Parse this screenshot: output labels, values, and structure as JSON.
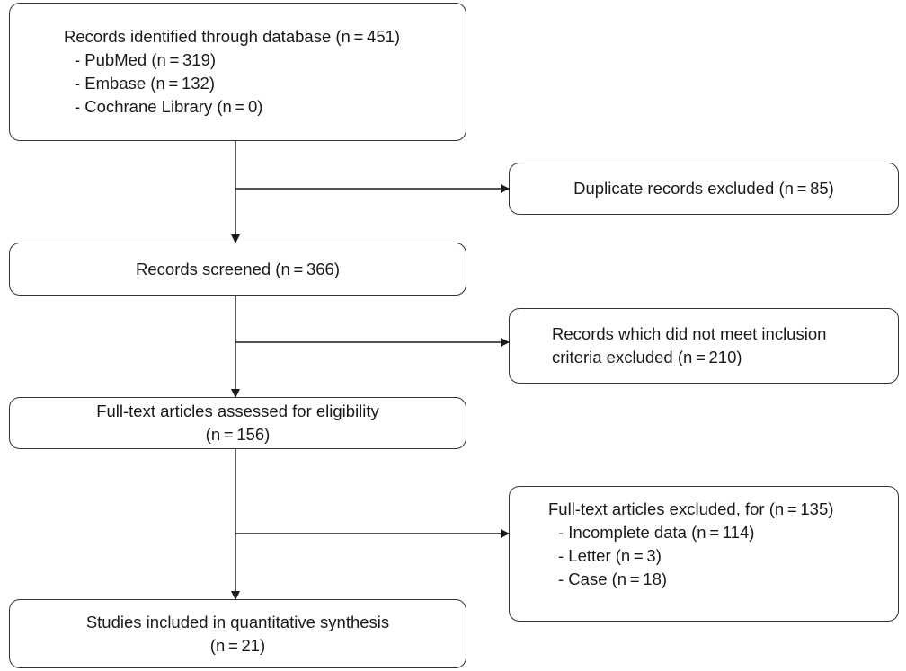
{
  "identification": {
    "title": "Records identified through database (n = 451)",
    "sources": [
      "- PubMed (n = 319)",
      "- Embase (n = 132)",
      "- Cochrane Library (n = 0)"
    ]
  },
  "duplicates": {
    "text": "Duplicate records excluded (n = 85)"
  },
  "screened": {
    "text": "Records screened (n = 366)"
  },
  "not_meeting_criteria": {
    "line1": "Records which did not meet inclusion",
    "line2": "criteria excluded (n = 210)"
  },
  "eligibility": {
    "line1": "Full-text articles assessed for eligibility",
    "line2": "(n = 156)"
  },
  "fulltext_excluded": {
    "title": "Full-text articles excluded, for (n = 135)",
    "reasons": [
      "- Incomplete data (n = 114)",
      "- Letter (n = 3)",
      "- Case (n = 18)"
    ]
  },
  "included": {
    "line1": "Studies included in quantitative synthesis",
    "line2": "(n = 21)"
  }
}
